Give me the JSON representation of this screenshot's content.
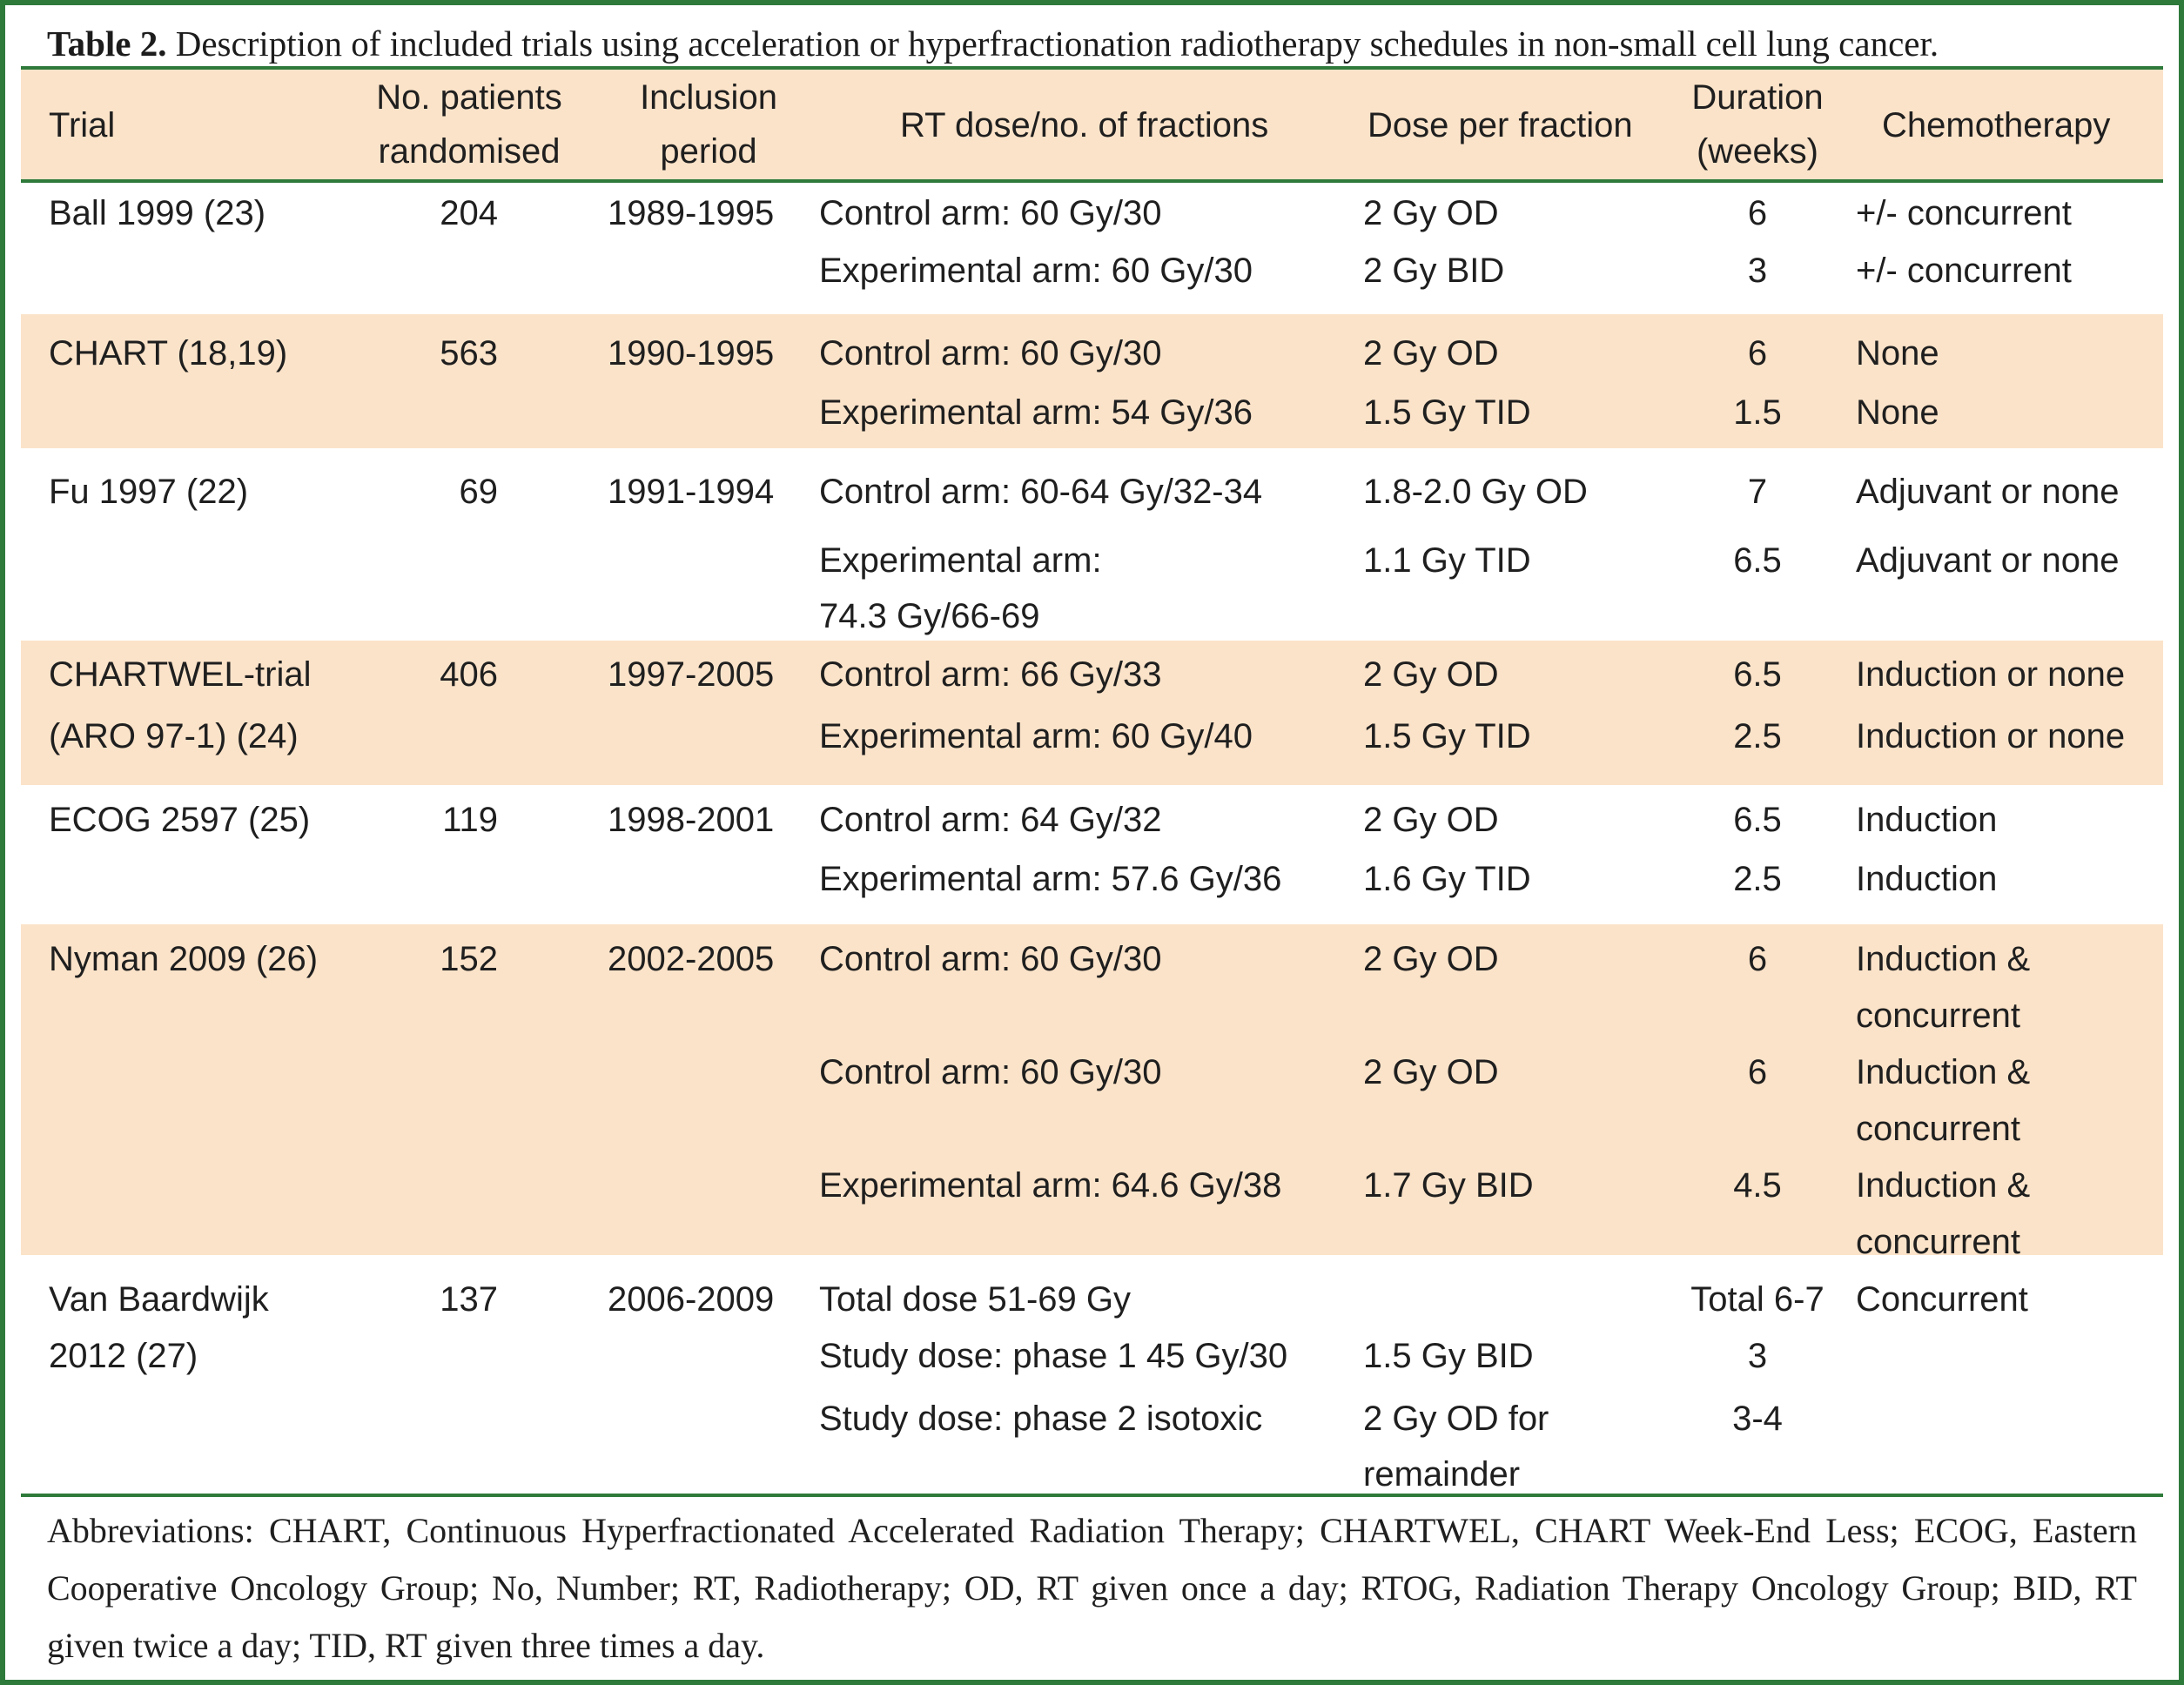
{
  "caption": {
    "label": "Table 2.",
    "text": " Description of included trials using acceleration or hyperfractionation radiotherapy schedules in non-small cell lung cancer."
  },
  "table": {
    "headers": {
      "trial": "Trial",
      "patients_1": "No. patients",
      "patients_2": "randomised",
      "inclusion_1": "Inclusion",
      "inclusion_2": "period",
      "rt_dose": "RT dose/no. of fractions",
      "dose_per_fraction": "Dose per fraction",
      "duration_1": "Duration",
      "duration_2": "(weeks)",
      "chemo": "Chemotherapy"
    },
    "rows": {
      "ball": {
        "trial": [
          "Ball 1999 (23)"
        ],
        "patients": "204",
        "period": "1989-1995",
        "arms": [
          {
            "rt": [
              "Control arm: 60 Gy/30"
            ],
            "dose": [
              "2 Gy OD"
            ],
            "duration": "6",
            "chemo": [
              "+/- concurrent"
            ]
          },
          {
            "rt": [
              "Experimental arm: 60 Gy/30"
            ],
            "dose": [
              "2 Gy BID"
            ],
            "duration": "3",
            "chemo": [
              "+/- concurrent"
            ]
          }
        ]
      },
      "chart": {
        "trial": [
          "CHART (18,19)"
        ],
        "patients": "563",
        "period": "1990-1995",
        "arms": [
          {
            "rt": [
              "Control arm: 60 Gy/30"
            ],
            "dose": [
              "2 Gy OD"
            ],
            "duration": "6",
            "chemo": [
              "None"
            ]
          },
          {
            "rt": [
              "Experimental arm: 54 Gy/36"
            ],
            "dose": [
              "1.5 Gy TID"
            ],
            "duration": "1.5",
            "chemo": [
              "None"
            ]
          }
        ]
      },
      "fu": {
        "trial": [
          "Fu 1997 (22)"
        ],
        "patients": "69",
        "period": "1991-1994",
        "arms": [
          {
            "rt": [
              "Control arm: 60-64 Gy/32-34"
            ],
            "dose": [
              "1.8-2.0 Gy OD"
            ],
            "duration": "7",
            "chemo": [
              "Adjuvant or none"
            ]
          },
          {
            "rt": [
              "Experimental arm:",
              "74.3 Gy/66-69"
            ],
            "dose": [
              "1.1 Gy TID"
            ],
            "duration": "6.5",
            "chemo": [
              "Adjuvant or none"
            ]
          }
        ]
      },
      "chartwel": {
        "trial": [
          "CHARTWEL-trial",
          "(ARO 97-1) (24)"
        ],
        "patients": "406",
        "period": "1997-2005",
        "arms": [
          {
            "rt": [
              "Control arm: 66 Gy/33"
            ],
            "dose": [
              "2 Gy OD"
            ],
            "duration": "6.5",
            "chemo": [
              "Induction or none"
            ]
          },
          {
            "rt": [
              "Experimental arm: 60 Gy/40"
            ],
            "dose": [
              "1.5 Gy TID"
            ],
            "duration": "2.5",
            "chemo": [
              "Induction or none"
            ]
          }
        ]
      },
      "ecog": {
        "trial": [
          "ECOG 2597 (25)"
        ],
        "patients": "119",
        "period": "1998-2001",
        "arms": [
          {
            "rt": [
              "Control arm: 64 Gy/32"
            ],
            "dose": [
              "2 Gy OD"
            ],
            "duration": "6.5",
            "chemo": [
              "Induction"
            ]
          },
          {
            "rt": [
              "Experimental arm: 57.6 Gy/36"
            ],
            "dose": [
              "1.6 Gy TID"
            ],
            "duration": "2.5",
            "chemo": [
              "Induction"
            ]
          }
        ]
      },
      "nyman": {
        "trial": [
          "Nyman 2009 (26)"
        ],
        "patients": "152",
        "period": "2002-2005",
        "arms": [
          {
            "rt": [
              "Control arm: 60 Gy/30"
            ],
            "dose": [
              "2 Gy OD"
            ],
            "duration": "6",
            "chemo": [
              "Induction &",
              "concurrent"
            ]
          },
          {
            "rt": [
              "Control arm: 60 Gy/30"
            ],
            "dose": [
              "2 Gy OD"
            ],
            "duration": "6",
            "chemo": [
              "Induction &",
              "concurrent"
            ]
          },
          {
            "rt": [
              "Experimental arm: 64.6 Gy/38"
            ],
            "dose": [
              "1.7 Gy BID"
            ],
            "duration": "4.5",
            "chemo": [
              "Induction &",
              "concurrent"
            ]
          }
        ]
      },
      "baardwijk": {
        "trial": [
          "Van Baardwijk",
          "2012 (27)"
        ],
        "patients": "137",
        "period": "2006-2009",
        "arms": [
          {
            "rt": [
              "Total dose 51-69 Gy"
            ],
            "dose": [
              ""
            ],
            "duration": "Total 6-7",
            "chemo": [
              "Concurrent"
            ]
          },
          {
            "rt": [
              "Study dose: phase 1 45 Gy/30"
            ],
            "dose": [
              "1.5 Gy BID"
            ],
            "duration": "3",
            "chemo": [
              ""
            ]
          },
          {
            "rt": [
              "Study dose: phase 2 isotoxic"
            ],
            "dose": [
              "2 Gy OD for",
              "remainder"
            ],
            "duration": "3-4",
            "chemo": [
              ""
            ]
          }
        ]
      }
    }
  },
  "footnote": "Abbreviations: CHART, Continuous Hyperfractionated Accelerated Radiation Therapy; CHARTWEL, CHART Week-End Less; ECOG, Eastern Cooperative Oncology Group; No, Number; RT, Radiotherapy; OD, RT given once a day; RTOG, Radiation Therapy Oncology Group; BID, RT given twice a day; TID, RT given three times a day.",
  "colors": {
    "border": "#2e7a3b",
    "band": "#fbe3c9",
    "text": "#1f1f1f"
  }
}
